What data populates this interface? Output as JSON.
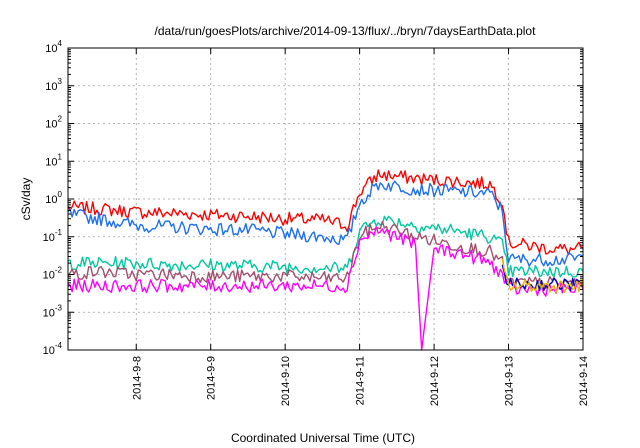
{
  "chart_data": {
    "type": "line",
    "title": "/data/run/goesPlots/archive/2014-09-13/flux/../bryn/7daysEarthData.plot",
    "xlabel": "Coordinated Universal Time (UTC)",
    "ylabel": "cSv/day",
    "y_scale": "log",
    "ylim": [
      0.0001,
      10000
    ],
    "y_ticks": [
      {
        "value": 0.0001,
        "base": "10",
        "exp": "-4"
      },
      {
        "value": 0.001,
        "base": "10",
        "exp": "-3"
      },
      {
        "value": 0.01,
        "base": "10",
        "exp": "-2"
      },
      {
        "value": 0.1,
        "base": "10",
        "exp": "-1"
      },
      {
        "value": 1,
        "base": "10",
        "exp": "0"
      },
      {
        "value": 10,
        "base": "10",
        "exp": "1"
      },
      {
        "value": 100,
        "base": "10",
        "exp": "2"
      },
      {
        "value": 1000,
        "base": "10",
        "exp": "3"
      },
      {
        "value": 10000,
        "base": "10",
        "exp": "4"
      }
    ],
    "xlim": [
      "2014-09-07 02:00",
      "2014-09-14 00:00"
    ],
    "x_ticks": [
      "2014-9-8",
      "2014-9-9",
      "2014-9-10",
      "2014-9-11",
      "2014-9-12",
      "2014-9-13",
      "2014-9-14"
    ],
    "grid": true,
    "series": [
      {
        "color": "#ff0000",
        "x": [
          "2014-09-07 02:00",
          "2014-09-07 12:00",
          "2014-09-08 00:00",
          "2014-09-08 12:00",
          "2014-09-09 00:00",
          "2014-09-09 12:00",
          "2014-09-10 00:00",
          "2014-09-10 12:00",
          "2014-09-10 20:00",
          "2014-09-11 00:00",
          "2014-09-11 06:00",
          "2014-09-11 12:00",
          "2014-09-11 18:00",
          "2014-09-12 00:00",
          "2014-09-12 06:00",
          "2014-09-12 12:00",
          "2014-09-12 18:00",
          "2014-09-12 22:00",
          "2014-09-13 00:00",
          "2014-09-13 12:00",
          "2014-09-13 20:00",
          "2014-09-14 00:00"
        ],
        "y": [
          0.6,
          0.55,
          0.45,
          0.42,
          0.38,
          0.35,
          0.3,
          0.28,
          0.2,
          1.5,
          4.5,
          4,
          3.5,
          3.2,
          3,
          2.7,
          2.5,
          0.9,
          0.07,
          0.05,
          0.045,
          0.05
        ]
      },
      {
        "color": "#1e6ff0",
        "x": [
          "2014-09-07 02:00",
          "2014-09-07 12:00",
          "2014-09-08 00:00",
          "2014-09-08 12:00",
          "2014-09-09 00:00",
          "2014-09-09 12:00",
          "2014-09-10 00:00",
          "2014-09-10 12:00",
          "2014-09-10 20:00",
          "2014-09-11 00:00",
          "2014-09-11 06:00",
          "2014-09-11 12:00",
          "2014-09-11 18:00",
          "2014-09-12 00:00",
          "2014-09-12 06:00",
          "2014-09-12 12:00",
          "2014-09-12 18:00",
          "2014-09-12 22:00",
          "2014-09-13 00:00",
          "2014-09-13 12:00",
          "2014-09-13 20:00",
          "2014-09-14 00:00"
        ],
        "y": [
          0.4,
          0.3,
          0.2,
          0.18,
          0.16,
          0.15,
          0.12,
          0.1,
          0.08,
          0.8,
          2.5,
          2.2,
          1.8,
          1.7,
          1.6,
          1.5,
          1.4,
          0.5,
          0.025,
          0.025,
          0.025,
          0.03
        ]
      },
      {
        "color": "#00c8a0",
        "x": [
          "2014-09-07 02:00",
          "2014-09-07 12:00",
          "2014-09-08 00:00",
          "2014-09-08 12:00",
          "2014-09-09 00:00",
          "2014-09-09 12:00",
          "2014-09-10 00:00",
          "2014-09-10 12:00",
          "2014-09-10 20:00",
          "2014-09-11 00:00",
          "2014-09-11 06:00",
          "2014-09-11 12:00",
          "2014-09-11 18:00",
          "2014-09-12 00:00",
          "2014-09-12 06:00",
          "2014-09-12 12:00",
          "2014-09-12 18:00",
          "2014-09-12 22:00",
          "2014-09-13 00:00",
          "2014-09-13 12:00",
          "2014-09-13 20:00",
          "2014-09-14 00:00"
        ],
        "y": [
          0.02,
          0.02,
          0.02,
          0.018,
          0.018,
          0.017,
          0.016,
          0.015,
          0.014,
          0.15,
          0.3,
          0.25,
          0.2,
          0.17,
          0.15,
          0.12,
          0.1,
          0.06,
          0.012,
          0.012,
          0.012,
          0.012
        ]
      },
      {
        "color": "#a0506e",
        "x": [
          "2014-09-07 02:00",
          "2014-09-07 12:00",
          "2014-09-08 00:00",
          "2014-09-08 12:00",
          "2014-09-09 00:00",
          "2014-09-09 12:00",
          "2014-09-10 00:00",
          "2014-09-10 12:00",
          "2014-09-10 20:00",
          "2014-09-11 00:00",
          "2014-09-11 06:00",
          "2014-09-11 12:00",
          "2014-09-11 18:00",
          "2014-09-12 00:00",
          "2014-09-12 06:00",
          "2014-09-12 12:00",
          "2014-09-12 18:00",
          "2014-09-12 22:00",
          "2014-09-13 00:00",
          "2014-09-13 12:00",
          "2014-09-13 20:00",
          "2014-09-14 00:00"
        ],
        "y": [
          0.01,
          0.012,
          0.01,
          0.01,
          0.009,
          0.009,
          0.009,
          0.008,
          0.008,
          0.1,
          0.2,
          0.15,
          0.1,
          0.08,
          0.06,
          0.05,
          0.04,
          0.02,
          0.006,
          0.006,
          0.006,
          0.006
        ]
      },
      {
        "color": "#ff00ff",
        "x": [
          "2014-09-07 02:00",
          "2014-09-07 12:00",
          "2014-09-08 00:00",
          "2014-09-08 12:00",
          "2014-09-09 00:00",
          "2014-09-09 12:00",
          "2014-09-10 00:00",
          "2014-09-10 12:00",
          "2014-09-10 20:00",
          "2014-09-11 00:00",
          "2014-09-11 06:00",
          "2014-09-11 12:00",
          "2014-09-11 18:00",
          "2014-09-11 20:00",
          "2014-09-12 00:00",
          "2014-09-12 06:00",
          "2014-09-12 12:00",
          "2014-09-12 18:00",
          "2014-09-12 22:00",
          "2014-09-13 00:00",
          "2014-09-13 12:00",
          "2014-09-13 20:00",
          "2014-09-14 00:00"
        ],
        "y": [
          0.005,
          0.005,
          0.005,
          0.005,
          0.005,
          0.005,
          0.005,
          0.005,
          0.005,
          0.08,
          0.15,
          0.1,
          0.06,
          0.0001,
          0.05,
          0.04,
          0.03,
          0.02,
          0.01,
          0.004,
          0.004,
          0.004,
          0.004
        ]
      },
      {
        "color": "#0000c0",
        "x": [
          "2014-09-12 22:00",
          "2014-09-13 00:00",
          "2014-09-13 12:00",
          "2014-09-13 20:00",
          "2014-09-14 00:00"
        ],
        "y": [
          0.02,
          0.0055,
          0.0055,
          0.0055,
          0.0055
        ]
      },
      {
        "color": "#e6b400",
        "x": [
          "2014-09-12 22:00",
          "2014-09-13 00:00",
          "2014-09-13 12:00",
          "2014-09-13 20:00",
          "2014-09-14 00:00"
        ],
        "y": [
          0.018,
          0.005,
          0.005,
          0.005,
          0.005
        ]
      }
    ]
  }
}
